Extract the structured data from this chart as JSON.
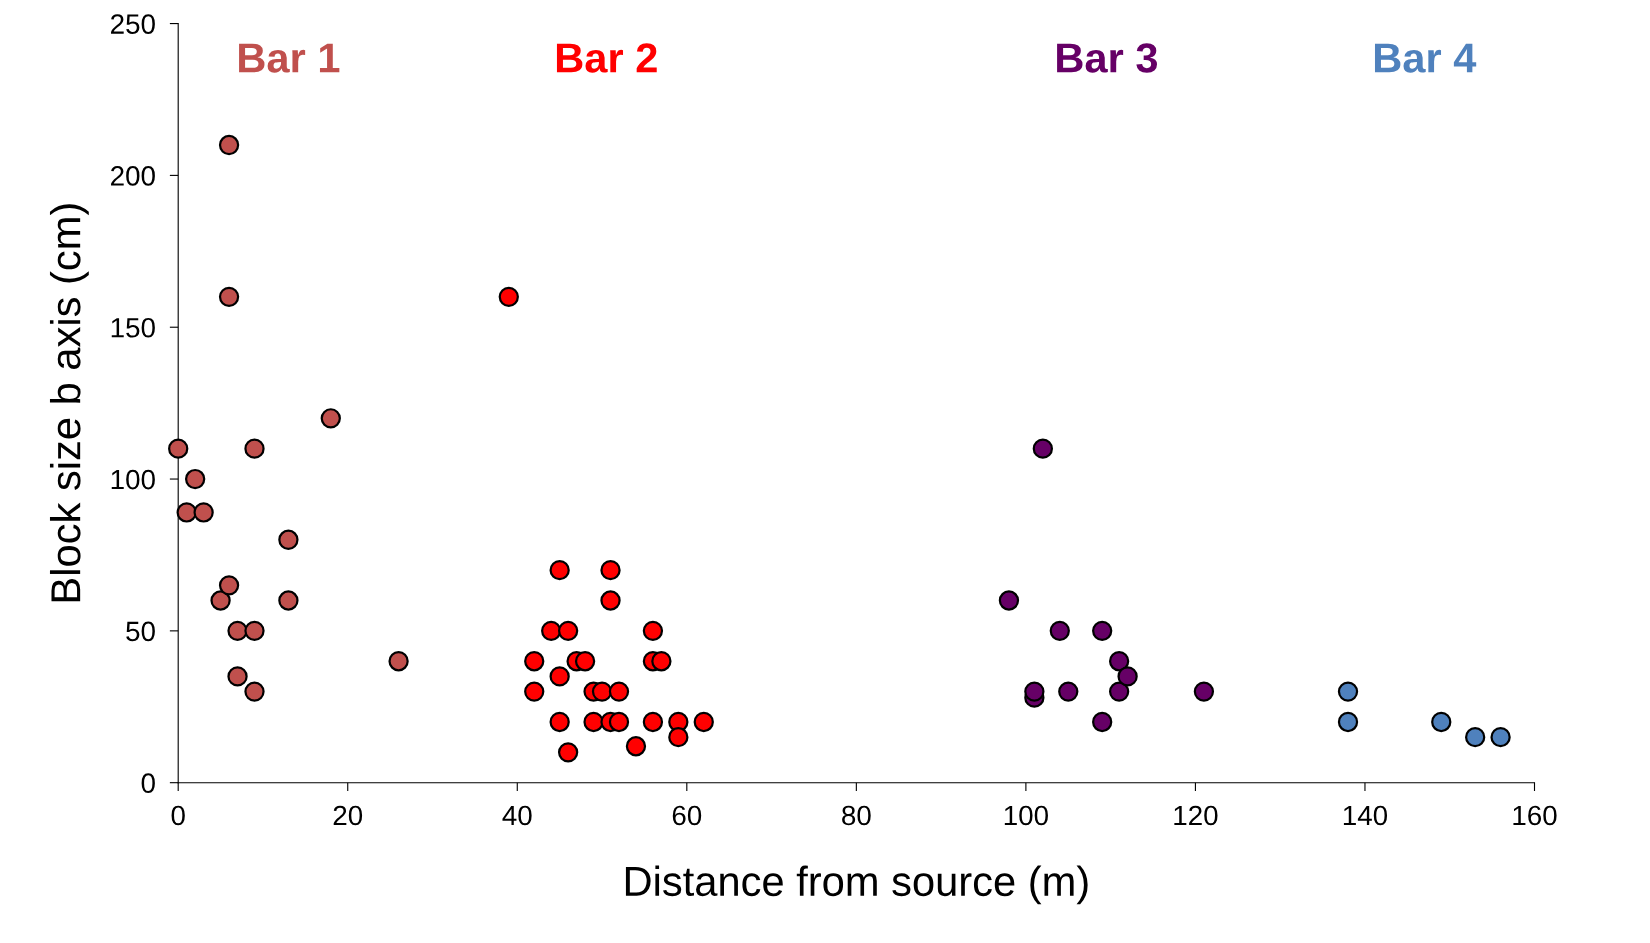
{
  "chart_data": {
    "type": "scatter",
    "xlabel": "Distance from source (m)",
    "ylabel": "Block size b axis (cm)",
    "xlim": [
      0,
      160
    ],
    "xticks": [
      0,
      20,
      40,
      60,
      80,
      100,
      120,
      140,
      160
    ],
    "ylim": [
      0,
      250
    ],
    "yticks": [
      0,
      50,
      100,
      150,
      200,
      250
    ],
    "grid": false,
    "legend": false,
    "marker": "circle",
    "series": [
      {
        "name": "Bar 1",
        "color": "#c0504d",
        "x": [
          0,
          1,
          2,
          3,
          5,
          6,
          6,
          6,
          7,
          7,
          9,
          9,
          9,
          13,
          13,
          18,
          26
        ],
        "values": [
          110,
          89,
          100,
          89,
          60,
          65,
          160,
          210,
          50,
          35,
          110,
          50,
          30,
          80,
          60,
          120,
          40
        ]
      },
      {
        "name": "Bar 2",
        "color": "#ff0000",
        "x": [
          39,
          42,
          42,
          44,
          45,
          45,
          45,
          46,
          46,
          47,
          48,
          49,
          49,
          50,
          51,
          51,
          51,
          52,
          52,
          54,
          56,
          56,
          56,
          57,
          59,
          59,
          62
        ],
        "values": [
          160,
          40,
          30,
          50,
          70,
          35,
          20,
          50,
          10,
          40,
          40,
          30,
          20,
          30,
          70,
          60,
          20,
          30,
          20,
          12,
          50,
          40,
          20,
          40,
          20,
          15,
          20
        ]
      },
      {
        "name": "Bar 3",
        "color": "#660066",
        "x": [
          98,
          101,
          101,
          102,
          104,
          105,
          109,
          109,
          111,
          111,
          112,
          121
        ],
        "values": [
          60,
          28,
          30,
          110,
          50,
          30,
          50,
          20,
          40,
          30,
          35,
          30
        ]
      },
      {
        "name": "Bar 4",
        "color": "#4f81bd",
        "x": [
          138,
          138,
          149,
          153,
          156
        ],
        "values": [
          30,
          20,
          20,
          15,
          15
        ]
      }
    ]
  }
}
